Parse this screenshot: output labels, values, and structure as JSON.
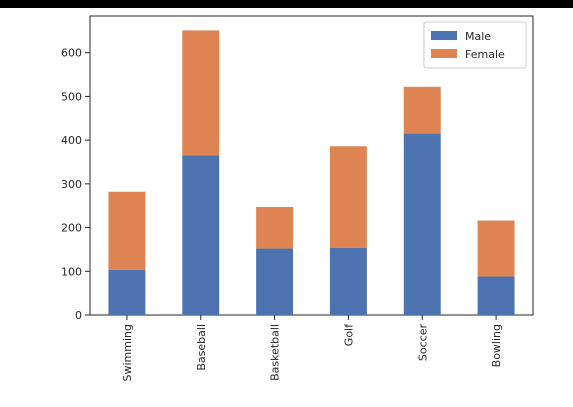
{
  "chart_data": {
    "type": "bar",
    "stacked": true,
    "categories": [
      "Swimming",
      "Baseball",
      "Basketball",
      "Golf",
      "Soccer",
      "Bowling"
    ],
    "series": [
      {
        "name": "Male",
        "values": [
          103,
          365,
          152,
          154,
          415,
          88
        ],
        "color": "#4c72b0"
      },
      {
        "name": "Female",
        "values": [
          179,
          286,
          95,
          232,
          107,
          128
        ],
        "color": "#dd8452"
      }
    ],
    "yticks": [
      0,
      100,
      200,
      300,
      400,
      500,
      600
    ],
    "ylim": [
      0,
      684
    ],
    "legend_position": "top-right",
    "grid": false
  }
}
